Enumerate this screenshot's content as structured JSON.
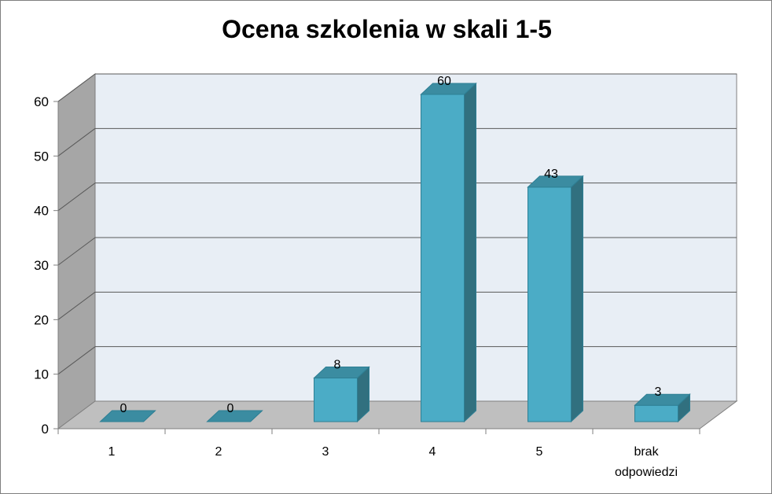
{
  "chart_data": {
    "type": "bar",
    "title": "Ocena szkolenia w skali 1-5",
    "categories": [
      "1",
      "2",
      "3",
      "4",
      "5",
      "brak odpowiedzi"
    ],
    "values": [
      0,
      0,
      8,
      60,
      43,
      3
    ],
    "xlabel": "",
    "ylabel": "",
    "ylim": [
      0,
      60
    ],
    "yticks": [
      "0",
      "10",
      "20",
      "30",
      "40",
      "50",
      "60"
    ],
    "grid": true,
    "legend": "none",
    "style": "3d-column",
    "colors": {
      "bar_front": "#4bacc6",
      "bar_side": "#31707f",
      "bar_top": "#3b8ca1",
      "back_wall": "#e8eef5",
      "side_wall": "#a6a6a6",
      "floor": "#bfbfbf"
    }
  }
}
